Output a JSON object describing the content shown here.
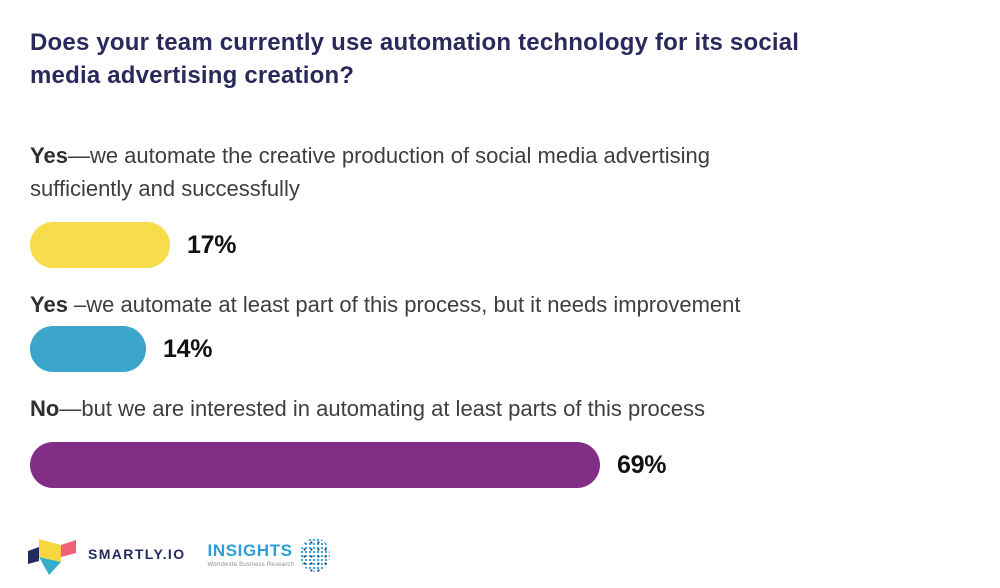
{
  "title": {
    "line1": "Does your team currently use automation technology for its social",
    "line2": "media advertising creation?",
    "full": "Does your team currently use automation technology for its social media advertising creation?"
  },
  "options": [
    {
      "lead": "Yes",
      "rest_line1": "—we automate the creative production of social media advertising",
      "rest_line2": "sufficiently and successfully",
      "value": 17,
      "value_label": "17%",
      "bar_color": "#F7DC4B"
    },
    {
      "lead": "Yes",
      "rest_line1": " –we automate at least part of this process, but it needs improvement",
      "value": 14,
      "value_label": "14%",
      "bar_color": "#3CA6CA"
    },
    {
      "lead": "No",
      "rest_line1": "—but we are interested in automating at least parts of this process",
      "value": 69,
      "value_label": "69%",
      "bar_color": "#822E87"
    }
  ],
  "chart_data": {
    "type": "bar",
    "orientation": "horizontal",
    "title": "Does your team currently use automation technology for its social media advertising creation?",
    "categories": [
      "Yes—we automate the creative production of social media advertising sufficiently and successfully",
      "Yes –we automate at least part of this process, but it needs improvement",
      "No—but we are interested in automating at least parts of this process"
    ],
    "values": [
      17,
      14,
      69
    ],
    "value_labels": [
      "17%",
      "14%",
      "69%"
    ],
    "unit": "%",
    "xlim": [
      0,
      100
    ],
    "bar_colors": [
      "#F7DC4B",
      "#3CA6CA",
      "#822E87"
    ],
    "grid": false,
    "legend": false
  },
  "footer": {
    "smartly_text": "SMARTLY.IO",
    "insights_text": "INSIGHTS",
    "insights_subtitle": "Worldwide Business Research"
  },
  "colors": {
    "background": "#FFFFFF",
    "title_text": "#2A295C",
    "option_text": "#3E3E3E",
    "value_text": "#121212",
    "smartly_navy": "#232C5F",
    "smartly_yellow": "#F8D73E",
    "smartly_pink": "#EF6079",
    "smartly_teal": "#35AECC",
    "insights_blue": "#2E9FD4",
    "insights_subtitle_gray": "#8A9096"
  }
}
